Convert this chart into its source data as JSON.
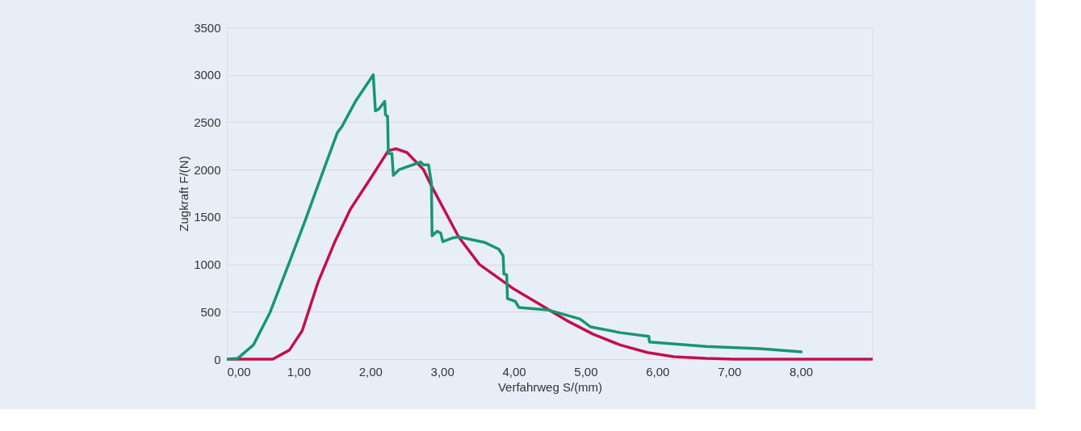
{
  "chart_data": {
    "type": "line",
    "xlabel": "Verfahrweg S/(mm)",
    "ylabel": "Zugkraft F/(N)",
    "xlim": [
      0,
      9
    ],
    "xticks": [
      {
        "value": 0,
        "label": "0,00"
      },
      {
        "value": 1,
        "label": "1,00"
      },
      {
        "value": 2,
        "label": "2,00"
      },
      {
        "value": 3,
        "label": "3,00"
      },
      {
        "value": 4,
        "label": "4,00"
      },
      {
        "value": 5,
        "label": "5,00"
      },
      {
        "value": 6,
        "label": "6,00"
      },
      {
        "value": 7,
        "label": "7,00"
      },
      {
        "value": 8,
        "label": "8,00"
      }
    ],
    "ylim": [
      0,
      3500
    ],
    "yticks": [
      0,
      500,
      1000,
      1500,
      2000,
      2500,
      3000,
      3500
    ],
    "grid": "y",
    "legend": false,
    "line_style": "solid",
    "marker": "none",
    "series": [
      {
        "color": "#c3104a",
        "x": [
          0,
          0.64,
          0.87,
          1.05,
          1.27,
          1.5,
          1.72,
          2.03,
          2.25,
          2.36,
          2.51,
          2.74,
          2.85,
          3.23,
          3.52,
          3.98,
          4.36,
          4.73,
          5.1,
          5.48,
          5.86,
          6.23,
          6.68,
          7.06,
          9
        ],
        "values": [
          0,
          0,
          95,
          300,
          810,
          1230,
          1580,
          1940,
          2200,
          2220,
          2180,
          2000,
          1830,
          1290,
          1000,
          750,
          580,
          410,
          265,
          150,
          70,
          26,
          8,
          0,
          0
        ]
      },
      {
        "color": "#16976f",
        "x": [
          0,
          0.15,
          0.37,
          0.6,
          0.86,
          1.09,
          1.35,
          1.54,
          1.6,
          1.8,
          2.04,
          2.07,
          2.12,
          2.2,
          2.21,
          2.24,
          2.25,
          2.3,
          2.32,
          2.4,
          2.7,
          2.74,
          2.81,
          2.85,
          2.86,
          2.93,
          2.98,
          3.01,
          3.15,
          3.23,
          3.6,
          3.79,
          3.85,
          3.86,
          3.9,
          3.91,
          4.02,
          4.07,
          4.47,
          4.92,
          5.07,
          5.48,
          5.88,
          5.89,
          6.68,
          7.43,
          8.02
        ],
        "values": [
          0,
          8,
          150,
          490,
          1000,
          1460,
          2000,
          2390,
          2450,
          2730,
          3000,
          2620,
          2640,
          2720,
          2580,
          2560,
          2170,
          2170,
          1940,
          2000,
          2080,
          2050,
          2050,
          1860,
          1300,
          1350,
          1330,
          1240,
          1280,
          1290,
          1230,
          1160,
          1090,
          900,
          890,
          640,
          610,
          545,
          520,
          425,
          340,
          280,
          240,
          180,
          135,
          110,
          77
        ]
      }
    ]
  }
}
